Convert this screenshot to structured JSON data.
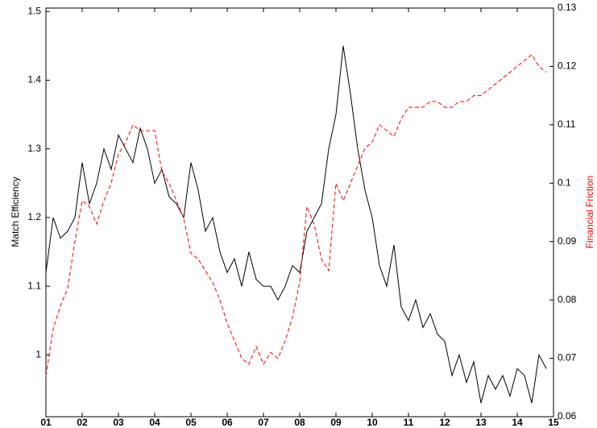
{
  "chart_data": {
    "type": "line",
    "ylabel": "Match Efficiency",
    "y2label": "Financial Friction",
    "x": [
      1.0,
      1.2,
      1.4,
      1.6,
      1.8,
      2.0,
      2.2,
      2.4,
      2.6,
      2.8,
      3.0,
      3.2,
      3.4,
      3.6,
      3.8,
      4.0,
      4.2,
      4.4,
      4.6,
      4.8,
      5.0,
      5.2,
      5.4,
      5.6,
      5.8,
      6.0,
      6.2,
      6.4,
      6.6,
      6.8,
      7.0,
      7.2,
      7.4,
      7.6,
      7.8,
      8.0,
      8.2,
      8.4,
      8.6,
      8.8,
      9.0,
      9.2,
      9.4,
      9.6,
      9.8,
      10.0,
      10.2,
      10.4,
      10.6,
      10.8,
      11.0,
      11.2,
      11.4,
      11.6,
      11.8,
      12.0,
      12.2,
      12.4,
      12.6,
      12.8,
      13.0,
      13.2,
      13.4,
      13.6,
      13.8,
      14.0,
      14.2,
      14.4,
      14.6,
      14.8
    ],
    "series": [
      {
        "color": "#000000",
        "dash": false,
        "values": [
          1.12,
          1.2,
          1.17,
          1.18,
          1.2,
          1.28,
          1.22,
          1.25,
          1.3,
          1.27,
          1.32,
          1.3,
          1.28,
          1.33,
          1.3,
          1.25,
          1.27,
          1.23,
          1.22,
          1.2,
          1.28,
          1.24,
          1.18,
          1.2,
          1.15,
          1.12,
          1.14,
          1.1,
          1.15,
          1.11,
          1.1,
          1.1,
          1.08,
          1.1,
          1.13,
          1.12,
          1.18,
          1.2,
          1.22,
          1.3,
          1.35,
          1.45,
          1.38,
          1.3,
          1.24,
          1.2,
          1.13,
          1.1,
          1.16,
          1.07,
          1.05,
          1.08,
          1.04,
          1.06,
          1.03,
          1.02,
          0.97,
          1.0,
          0.96,
          0.99,
          0.93,
          0.97,
          0.95,
          0.97,
          0.94,
          0.98,
          0.97,
          0.93,
          1.0,
          0.98
        ]
      },
      {
        "color": "#ff0000",
        "dash": true,
        "axis": "y2",
        "values": [
          0.067,
          0.075,
          0.079,
          0.082,
          0.09,
          0.097,
          0.096,
          0.093,
          0.097,
          0.1,
          0.105,
          0.107,
          0.11,
          0.109,
          0.109,
          0.109,
          0.102,
          0.1,
          0.097,
          0.094,
          0.088,
          0.087,
          0.085,
          0.083,
          0.08,
          0.076,
          0.073,
          0.07,
          0.069,
          0.072,
          0.069,
          0.071,
          0.07,
          0.073,
          0.077,
          0.083,
          0.096,
          0.093,
          0.087,
          0.085,
          0.1,
          0.097,
          0.1,
          0.103,
          0.106,
          0.107,
          0.11,
          0.109,
          0.108,
          0.111,
          0.113,
          0.113,
          0.113,
          0.114,
          0.114,
          0.113,
          0.113,
          0.114,
          0.114,
          0.115,
          0.115,
          0.116,
          0.117,
          0.118,
          0.119,
          0.12,
          0.121,
          0.122,
          0.12,
          0.119
        ]
      }
    ],
    "xlim": [
      1,
      15
    ],
    "xticks": [
      {
        "value": 1,
        "label": "01"
      },
      {
        "value": 2,
        "label": "02"
      },
      {
        "value": 3,
        "label": "03"
      },
      {
        "value": 4,
        "label": "04"
      },
      {
        "value": 5,
        "label": "05"
      },
      {
        "value": 6,
        "label": "06"
      },
      {
        "value": 7,
        "label": "07"
      },
      {
        "value": 8,
        "label": "08"
      },
      {
        "value": 9,
        "label": "09"
      },
      10,
      11,
      12,
      13,
      14,
      15
    ],
    "ylim": [
      0.91,
      1.505
    ],
    "yticks": [
      1,
      1.1,
      1.2,
      1.3,
      1.4,
      1.5
    ],
    "y2lim": [
      0.06,
      0.13
    ],
    "y2ticks": [
      0.06,
      0.07,
      0.08,
      0.09,
      0.1,
      0.11,
      0.12,
      0.13
    ],
    "y2color": "#ff0000"
  }
}
